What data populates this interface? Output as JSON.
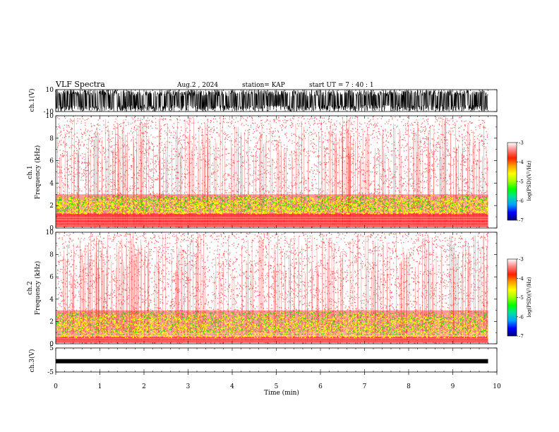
{
  "header": {
    "title": "VLF Spectra",
    "date": "Aug.2 , 2024",
    "station": "station= KAP",
    "start": "start UT = 7 : 40 : 1"
  },
  "colors": {
    "spectrogram_background": "#ffffff",
    "noise": "#ff2020",
    "band": "#ffff00",
    "intense": "#00e000",
    "waveform": "#000000"
  },
  "colorbar_colors": [
    "#000080",
    "#0000ff",
    "#00a0ff",
    "#00e0a0",
    "#00ff00",
    "#a0ff00",
    "#ffff00",
    "#ffa000",
    "#ff2000",
    "#ff8080",
    "#ffffff"
  ],
  "chart_data": [
    {
      "type": "line",
      "name": "ch.1 waveform",
      "ylabel": "ch.1(V)",
      "ylim": [
        -10,
        10
      ],
      "yticks": [
        "10",
        "-10"
      ],
      "xlim": [
        0,
        10
      ]
    },
    {
      "type": "heatmap",
      "name": "ch.1 spectrogram",
      "ylabel": "ch.1\nFrequency (kHz)",
      "ylabel_lines": [
        "ch.1",
        "Frequency (kHz)"
      ],
      "ylim": [
        0,
        10
      ],
      "xlim": [
        0,
        10
      ],
      "yticks": [
        "0",
        "2",
        "4",
        "6",
        "8",
        "10"
      ],
      "data_end_min": 9.8,
      "bands_khz": {
        "low_red": [
          0.1,
          1.3
        ],
        "yellow_band": [
          1.3,
          3.0
        ],
        "green_patches": [
          1.5,
          2.9
        ]
      },
      "colorbar": {
        "label": "log(PSD)(V²/Hz)",
        "range": [
          -7,
          -3
        ],
        "ticks": [
          "-3",
          "-4",
          "-5",
          "-6",
          "-7"
        ]
      }
    },
    {
      "type": "heatmap",
      "name": "ch.2 spectrogram",
      "ylabel": "ch.2\nFrequency (kHz)",
      "ylabel_lines": [
        "ch.2",
        "Frequency (kHz)"
      ],
      "ylim": [
        0,
        10
      ],
      "xlim": [
        0,
        10
      ],
      "yticks": [
        "0",
        "2",
        "4",
        "6",
        "8",
        "10"
      ],
      "data_end_min": 9.8,
      "bands_khz": {
        "low_red": [
          0.1,
          0.6
        ],
        "yellow_band": [
          0.6,
          3.0
        ],
        "green_patches": [
          0.8,
          2.9
        ]
      },
      "colorbar": {
        "label": "log(PSD)(V²/Hz)",
        "range": [
          -7,
          -3
        ],
        "ticks": [
          "-3",
          "-4",
          "-5",
          "-6",
          "-7"
        ]
      }
    },
    {
      "type": "line",
      "name": "ch.3 waveform",
      "ylabel": "ch.3(V)",
      "ylim": [
        -5,
        5
      ],
      "yticks": [
        "5",
        "-5"
      ],
      "xlim": [
        0,
        10
      ],
      "baseline_v": -0.5
    }
  ],
  "x_axis": {
    "label": "Time (min)",
    "ticks": [
      "0",
      "1",
      "2",
      "3",
      "4",
      "5",
      "6",
      "7",
      "8",
      "9",
      "10"
    ]
  }
}
